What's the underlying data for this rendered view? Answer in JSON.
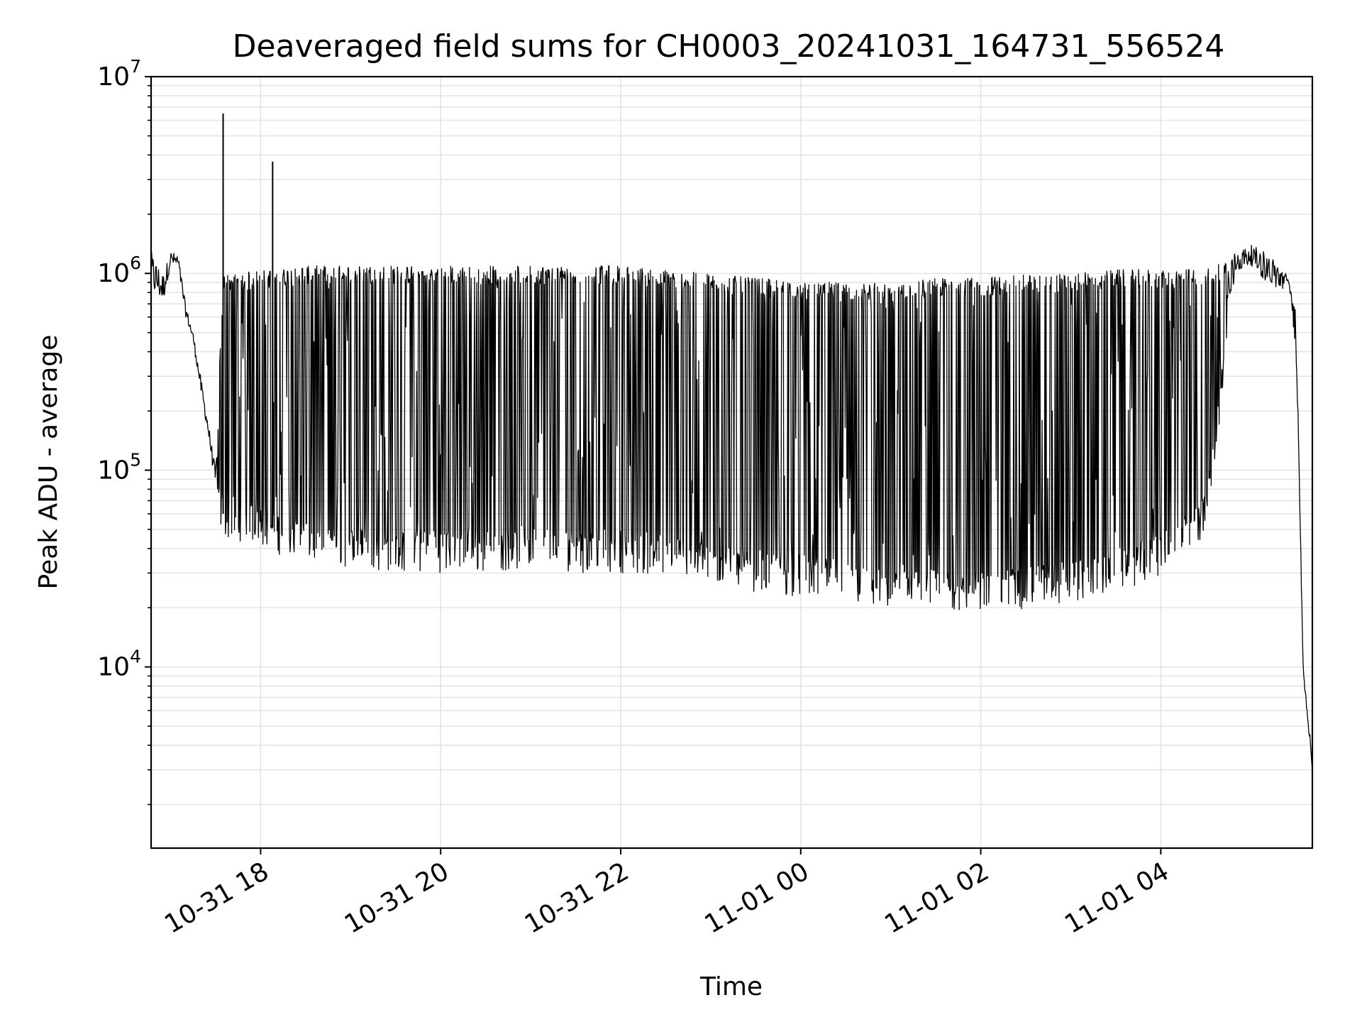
{
  "chart_data": {
    "type": "line",
    "title": "Deaveraged field sums for CH0003_20241031_164731_556524",
    "xlabel": "Time",
    "ylabel": "Peak ADU - average",
    "yscale": "log",
    "ylim": [
      1200,
      10000000
    ],
    "xlim": [
      "2024-10-31 16:47",
      "2024-11-01 05:41"
    ],
    "grid": true,
    "series_color": "#000000",
    "grid_color": "#e4e4e4",
    "x_ticks": [
      {
        "label": "10-31 18",
        "value": "2024-10-31 18:00"
      },
      {
        "label": "10-31 20",
        "value": "2024-10-31 20:00"
      },
      {
        "label": "10-31 22",
        "value": "2024-10-31 22:00"
      },
      {
        "label": "11-01 00",
        "value": "2024-11-01 00:00"
      },
      {
        "label": "11-01 02",
        "value": "2024-11-01 02:00"
      },
      {
        "label": "11-01 04",
        "value": "2024-11-01 04:00"
      }
    ],
    "y_ticks": [
      {
        "value": 10000,
        "base": "10",
        "exp": "4"
      },
      {
        "value": 100000,
        "base": "10",
        "exp": "5"
      },
      {
        "value": 1000000,
        "base": "10",
        "exp": "6"
      },
      {
        "value": 10000000,
        "base": "10",
        "exp": "7"
      }
    ],
    "series": [
      {
        "x": [
          "2024-10-31 16:47",
          "2024-10-31 16:55",
          "2024-10-31 17:00",
          "2024-10-31 17:05",
          "2024-10-31 17:10",
          "2024-10-31 17:15",
          "2024-10-31 17:20",
          "2024-10-31 17:25",
          "2024-10-31 17:30",
          "2024-10-31 17:35",
          "2024-10-31 17:45",
          "2024-10-31 18:00",
          "2024-10-31 18:10",
          "2024-10-31 18:30",
          "2024-10-31 19:00",
          "2024-10-31 19:30",
          "2024-10-31 20:00",
          "2024-10-31 20:30",
          "2024-10-31 21:00",
          "2024-10-31 21:30",
          "2024-10-31 22:00",
          "2024-10-31 22:30",
          "2024-10-31 23:00",
          "2024-10-31 23:30",
          "2024-11-01 00:00",
          "2024-11-01 00:30",
          "2024-11-01 01:00",
          "2024-11-01 01:30",
          "2024-11-01 02:00",
          "2024-11-01 02:30",
          "2024-11-01 03:00",
          "2024-11-01 03:30",
          "2024-11-01 04:00",
          "2024-11-01 04:30",
          "2024-11-01 04:50",
          "2024-11-01 05:00",
          "2024-11-01 05:10",
          "2024-11-01 05:20",
          "2024-11-01 05:25",
          "2024-11-01 05:30",
          "2024-11-01 05:35",
          "2024-11-01 05:41"
        ],
        "y": [
          800000,
          700000,
          1100000,
          1050000,
          600000,
          450000,
          250000,
          150000,
          80000,
          60000,
          58000,
          55000,
          50000,
          45000,
          42000,
          40000,
          40000,
          40000,
          42000,
          40000,
          40000,
          38000,
          35000,
          32000,
          30000,
          28000,
          25000,
          25000,
          25000,
          26000,
          28000,
          32000,
          38000,
          60000,
          1000000,
          1100000,
          900000,
          800000,
          900000,
          400000,
          9000,
          3000
        ],
        "upper": [
          1300000,
          1000000,
          1300000,
          1250000,
          700000,
          500000,
          300000,
          180000,
          100000,
          1000000,
          1000000,
          1050000,
          1050000,
          1100000,
          1100000,
          1100000,
          1100000,
          1100000,
          1100000,
          1100000,
          1100000,
          1050000,
          1000000,
          950000,
          920000,
          900000,
          900000,
          950000,
          950000,
          1000000,
          1000000,
          1050000,
          1050000,
          1050000,
          1300000,
          1400000,
          1300000,
          1100000,
          950000,
          700000,
          9500,
          3500
        ],
        "spikes": [
          {
            "x": "2024-10-31 17:35",
            "y": 6500000
          },
          {
            "x": "2024-10-31 18:08",
            "y": 3700000
          }
        ]
      }
    ]
  }
}
